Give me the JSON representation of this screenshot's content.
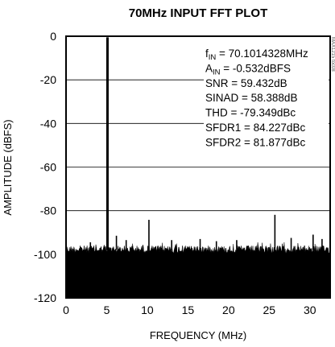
{
  "chart_data": {
    "type": "line",
    "title": "70MHz INPUT FFT PLOT",
    "xlabel": "FREQUENCY (MHz)",
    "ylabel": "AMPLITUDE (dBFS)",
    "xlim": [
      0,
      32.5
    ],
    "ylim": [
      -120,
      0
    ],
    "xticks": [
      "0",
      "5",
      "10",
      "15",
      "20",
      "25",
      "30"
    ],
    "yticks": [
      "0",
      "-20",
      "-40",
      "-60",
      "-80",
      "-100",
      "-120"
    ],
    "grid": "horizontal",
    "side_label": "MAX1215 toc08",
    "annotations": [
      {
        "main": "f",
        "sub": "IN",
        "rest": " = 70.1014328MHz"
      },
      {
        "main": "A",
        "sub": "IN",
        "rest": " = -0.532dBFS"
      },
      {
        "main": "SNR = 59.432dB",
        "sub": "",
        "rest": ""
      },
      {
        "main": "SINAD = 58.388dB",
        "sub": "",
        "rest": ""
      },
      {
        "main": "THD = -79.349dBc",
        "sub": "",
        "rest": ""
      },
      {
        "main": "SFDR1 = 84.227dBc",
        "sub": "",
        "rest": ""
      },
      {
        "main": "SFDR2 = 81.877dBc",
        "sub": "",
        "rest": ""
      }
    ],
    "series": [
      {
        "fundamental": {
          "x": 5.1,
          "y": -0.5
        },
        "noise_floor": [
          -104,
          -96
        ],
        "spurs": [
          {
            "x": 10.2,
            "y": -84.2
          },
          {
            "x": 25.7,
            "y": -81.9
          },
          {
            "x": 6.2,
            "y": -91.5
          },
          {
            "x": 7.4,
            "y": -93.5
          },
          {
            "x": 27.7,
            "y": -92.5
          },
          {
            "x": 30.4,
            "y": -91.0
          },
          {
            "x": 31.5,
            "y": -93.0
          },
          {
            "x": 13.0,
            "y": -93.5
          },
          {
            "x": 16.5,
            "y": -93.0
          },
          {
            "x": 18.5,
            "y": -94.0
          },
          {
            "x": 3.0,
            "y": -94.5
          },
          {
            "x": 21.0,
            "y": -93.5
          }
        ]
      }
    ]
  }
}
